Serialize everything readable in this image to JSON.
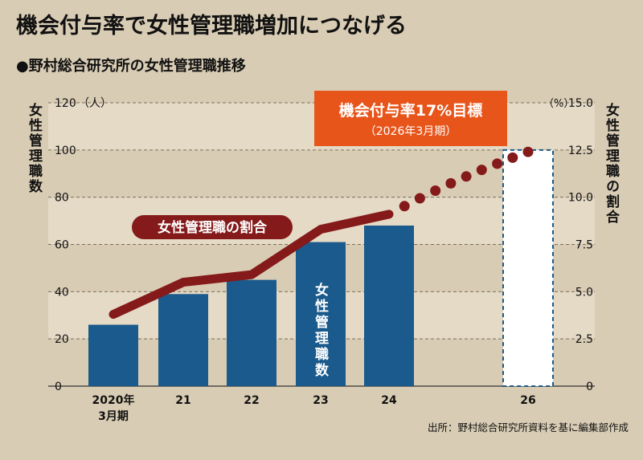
{
  "title": "機会付与率で女性管理職増加につなげる",
  "subtitle": "●野村総合研究所の女性管理職推移",
  "source": "出所：野村総合研究所資料を基に編集部作成",
  "colors": {
    "background": "#d9ccb4",
    "band": "#e5dac6",
    "bar": "#1a5a8c",
    "line": "#841a1a",
    "target_box": "#e8551b"
  },
  "chart_data": {
    "type": "bar",
    "categories": [
      "2020年\n3月期",
      "21",
      "22",
      "23",
      "24",
      "26"
    ],
    "left_axis": {
      "label": "女性管理職数",
      "unit": "（人）",
      "ylim": [
        0,
        120
      ],
      "ticks": [
        0,
        20,
        40,
        60,
        80,
        100,
        120
      ]
    },
    "right_axis": {
      "label": "女性管理職の割合",
      "unit": "（%）",
      "ylim": [
        0,
        15.0
      ],
      "ticks": [
        "0",
        "2.5",
        "5.0",
        "7.5",
        "10.0",
        "12.5",
        "15.0"
      ]
    },
    "series": [
      {
        "name": "女性管理職数",
        "kind": "bar",
        "axis": "left",
        "values": [
          26,
          39,
          45,
          61,
          68,
          null
        ]
      },
      {
        "name": "女性管理職の割合",
        "kind": "line",
        "axis": "right",
        "values": [
          3.8,
          5.5,
          5.9,
          8.3,
          9.1,
          null
        ]
      }
    ],
    "target": {
      "label": "機会付与率17%目標",
      "sublabel": "（2026年3月期）",
      "bar_value": 100,
      "line_value": 12.4
    },
    "grid": "alternating-bands",
    "legend": "none"
  }
}
